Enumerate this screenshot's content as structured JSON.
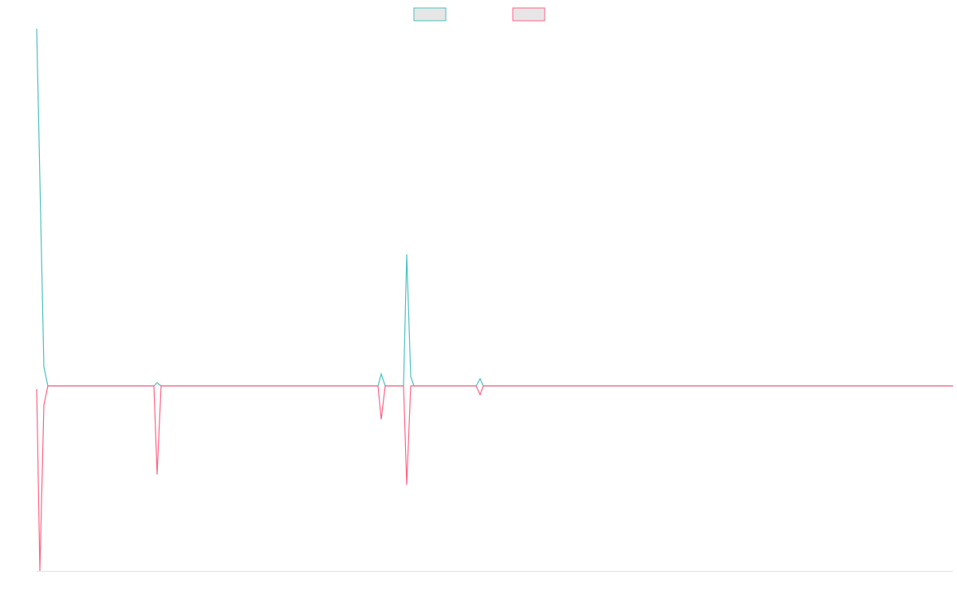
{
  "chart_data": {
    "type": "line",
    "x": [
      46,
      50,
      55,
      60,
      193,
      197,
      202,
      474,
      478,
      483,
      506,
      510,
      515,
      519,
      597,
      602,
      606,
      1195
    ],
    "xlim": [
      46,
      1195
    ],
    "ylim": [
      -232,
      448
    ],
    "series": [
      {
        "color": "#4bc0c0",
        "values": [
          448,
          260,
          24,
          0,
          0,
          4,
          0,
          0,
          15,
          0,
          0,
          165,
          12,
          0,
          0,
          9,
          0,
          0
        ]
      },
      {
        "color": "#ff6384",
        "values": [
          -4,
          -232,
          -24,
          0,
          0,
          -111,
          0,
          0,
          -42,
          0,
          0,
          -124,
          0,
          0,
          0,
          -11,
          0,
          0
        ]
      }
    ]
  }
}
